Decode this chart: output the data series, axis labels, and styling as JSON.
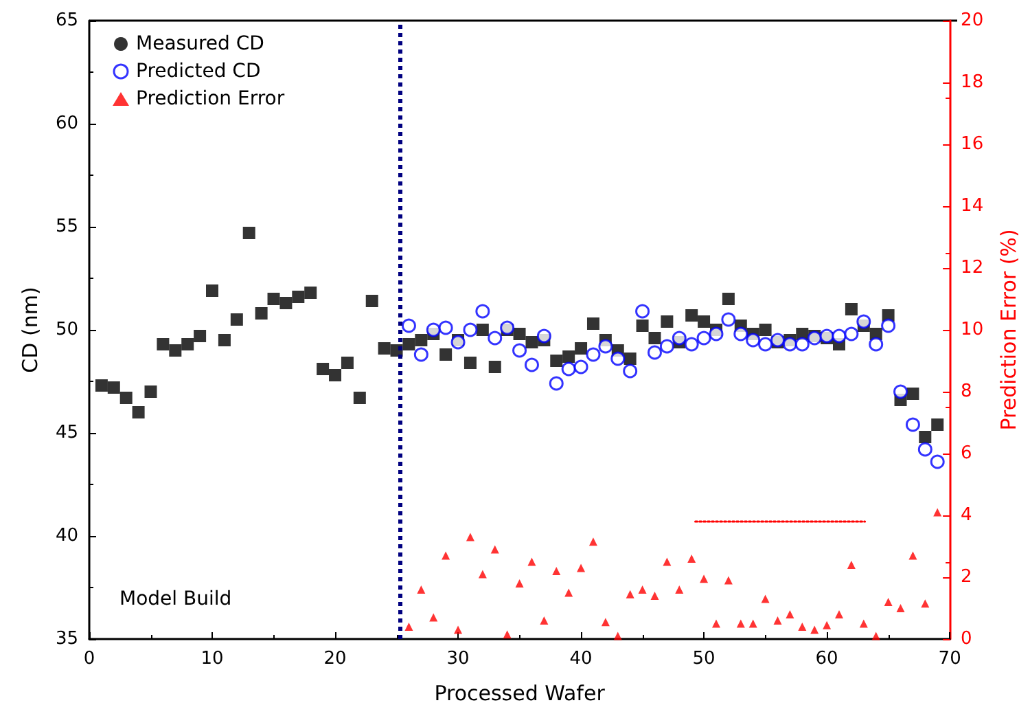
{
  "chart_data": {
    "type": "scatter",
    "xlabel": "Processed Wafer",
    "ylabel": "CD (nm)",
    "y2label": "Prediction Error (%)",
    "xlim": [
      0,
      70
    ],
    "xticks": [
      0,
      10,
      20,
      30,
      40,
      50,
      60,
      70
    ],
    "ylim": [
      35,
      65
    ],
    "yticks": [
      35,
      40,
      45,
      50,
      55,
      60,
      65
    ],
    "y2lim": [
      0,
      20
    ],
    "y2ticks": [
      0,
      2,
      4,
      6,
      8,
      10,
      12,
      14,
      16,
      18,
      20
    ],
    "grid": false,
    "legend": "top left",
    "annotations": [
      "Model Build"
    ],
    "ref_lines": [
      {
        "axis": "x",
        "value": 25.3,
        "color": "#000080",
        "line_style": "dotted"
      }
    ],
    "series": [
      {
        "name": "Measured CD",
        "color": "#000000",
        "marker": "square",
        "x": [
          1,
          2,
          3,
          4,
          5,
          6,
          7,
          8,
          9,
          10,
          11,
          12,
          13,
          14,
          15,
          16,
          17,
          18,
          19,
          20,
          21,
          22,
          23,
          24,
          25,
          26,
          27,
          28,
          29,
          30,
          31,
          32,
          33,
          34,
          35,
          36,
          37,
          38,
          39,
          40,
          41,
          42,
          43,
          44,
          45,
          46,
          47,
          48,
          49,
          50,
          51,
          52,
          53,
          54,
          55,
          56,
          57,
          58,
          59,
          60,
          61,
          62,
          63,
          64,
          65,
          66,
          67,
          68,
          69
        ],
        "values": [
          47.3,
          47.2,
          46.7,
          46.0,
          47.0,
          49.3,
          49.0,
          49.3,
          49.7,
          51.9,
          49.5,
          50.5,
          54.7,
          50.8,
          51.5,
          51.3,
          51.6,
          51.8,
          48.1,
          47.8,
          48.4,
          46.7,
          51.4,
          49.1,
          49.0,
          49.3,
          49.5,
          49.8,
          48.8,
          49.5,
          48.4,
          50.0,
          48.2,
          50.0,
          49.8,
          49.4,
          49.5,
          48.5,
          48.7,
          49.1,
          50.3,
          49.5,
          49.0,
          48.6,
          50.2,
          49.6,
          50.4,
          49.4,
          50.7,
          50.4,
          50.0,
          51.5,
          50.2,
          49.8,
          50.0,
          49.4,
          49.5,
          49.8,
          49.7,
          49.6,
          49.3,
          51.0,
          50.2,
          49.8,
          50.7,
          46.6,
          46.9,
          44.8,
          45.4
        ]
      },
      {
        "name": "Predicted CD",
        "color": "#0000ff",
        "marker": "circle",
        "x": [
          26,
          27,
          28,
          29,
          30,
          31,
          32,
          33,
          34,
          35,
          36,
          37,
          38,
          39,
          40,
          41,
          42,
          43,
          44,
          45,
          46,
          47,
          48,
          49,
          50,
          51,
          52,
          53,
          54,
          55,
          56,
          57,
          58,
          59,
          60,
          61,
          62,
          63,
          64,
          65,
          66,
          67,
          68,
          69
        ],
        "values": [
          50.2,
          48.8,
          50.0,
          50.1,
          49.4,
          50.0,
          50.9,
          49.6,
          50.1,
          49.0,
          48.3,
          49.7,
          47.4,
          48.1,
          48.2,
          48.8,
          49.2,
          48.6,
          48.0,
          50.9,
          48.9,
          49.2,
          49.6,
          49.3,
          49.6,
          49.8,
          50.5,
          49.8,
          49.5,
          49.3,
          49.5,
          49.3,
          49.3,
          49.6,
          49.7,
          49.7,
          49.8,
          50.4,
          49.3,
          50.2,
          47.0,
          45.4,
          44.2,
          43.6
        ]
      },
      {
        "name": "Prediction Error",
        "color": "#ff0000",
        "marker": "triangle",
        "axis": "y2",
        "x": [
          26,
          27,
          28,
          29,
          30,
          31,
          32,
          33,
          34,
          35,
          36,
          37,
          38,
          39,
          40,
          41,
          42,
          43,
          44,
          45,
          46,
          47,
          48,
          49,
          50,
          51,
          52,
          53,
          54,
          55,
          56,
          57,
          58,
          59,
          60,
          61,
          62,
          63,
          64,
          65,
          66,
          67,
          68,
          69
        ],
        "values": [
          0.4,
          1.6,
          0.7,
          2.7,
          0.3,
          3.3,
          2.1,
          2.9,
          0.15,
          1.8,
          2.5,
          0.6,
          2.2,
          1.5,
          2.3,
          3.15,
          0.55,
          0.1,
          1.45,
          1.6,
          1.4,
          2.5,
          1.6,
          2.6,
          1.95,
          0.5,
          1.9,
          0.5,
          0.5,
          1.3,
          0.6,
          0.8,
          0.4,
          0.3,
          0.45,
          0.8,
          2.4,
          0.5,
          0.1,
          1.2,
          1.0,
          2.7,
          1.15,
          4.1
        ]
      },
      {
        "type": "line",
        "color": "#ff0000",
        "line_style": "dotted",
        "marker": "none",
        "axis": "y2",
        "x": [
          49.3,
          63.1
        ],
        "values": [
          3.8,
          3.8
        ]
      }
    ]
  }
}
